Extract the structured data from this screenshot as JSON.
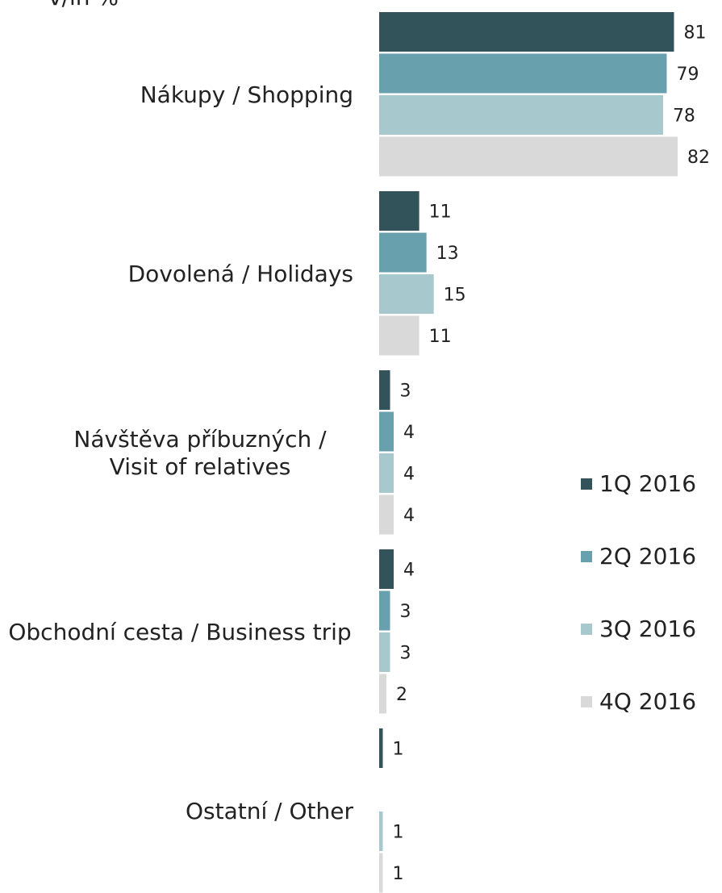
{
  "chart_data": {
    "type": "bar",
    "orientation": "horizontal",
    "title": "v/in %",
    "categories": [
      "Nákupy / Shopping",
      "Dovolená / Holidays",
      "Návštěva příbuzných / Visit of relatives",
      "Obchodní cesta / Business trip",
      "Ostatní / Other"
    ],
    "series": [
      {
        "name": "1Q 2016",
        "color": "#33535a",
        "values": [
          81,
          11,
          3,
          4,
          1
        ]
      },
      {
        "name": "2Q 2016",
        "color": "#68a0ae",
        "values": [
          79,
          13,
          4,
          3,
          null
        ]
      },
      {
        "name": "3Q 2016",
        "color": "#a7c8cd",
        "values": [
          78,
          15,
          4,
          3,
          1
        ]
      },
      {
        "name": "4Q 2016",
        "color": "#d9d9d9",
        "values": [
          82,
          11,
          4,
          2,
          1
        ]
      }
    ],
    "xlim": [
      0,
      82
    ],
    "legend": "right"
  }
}
